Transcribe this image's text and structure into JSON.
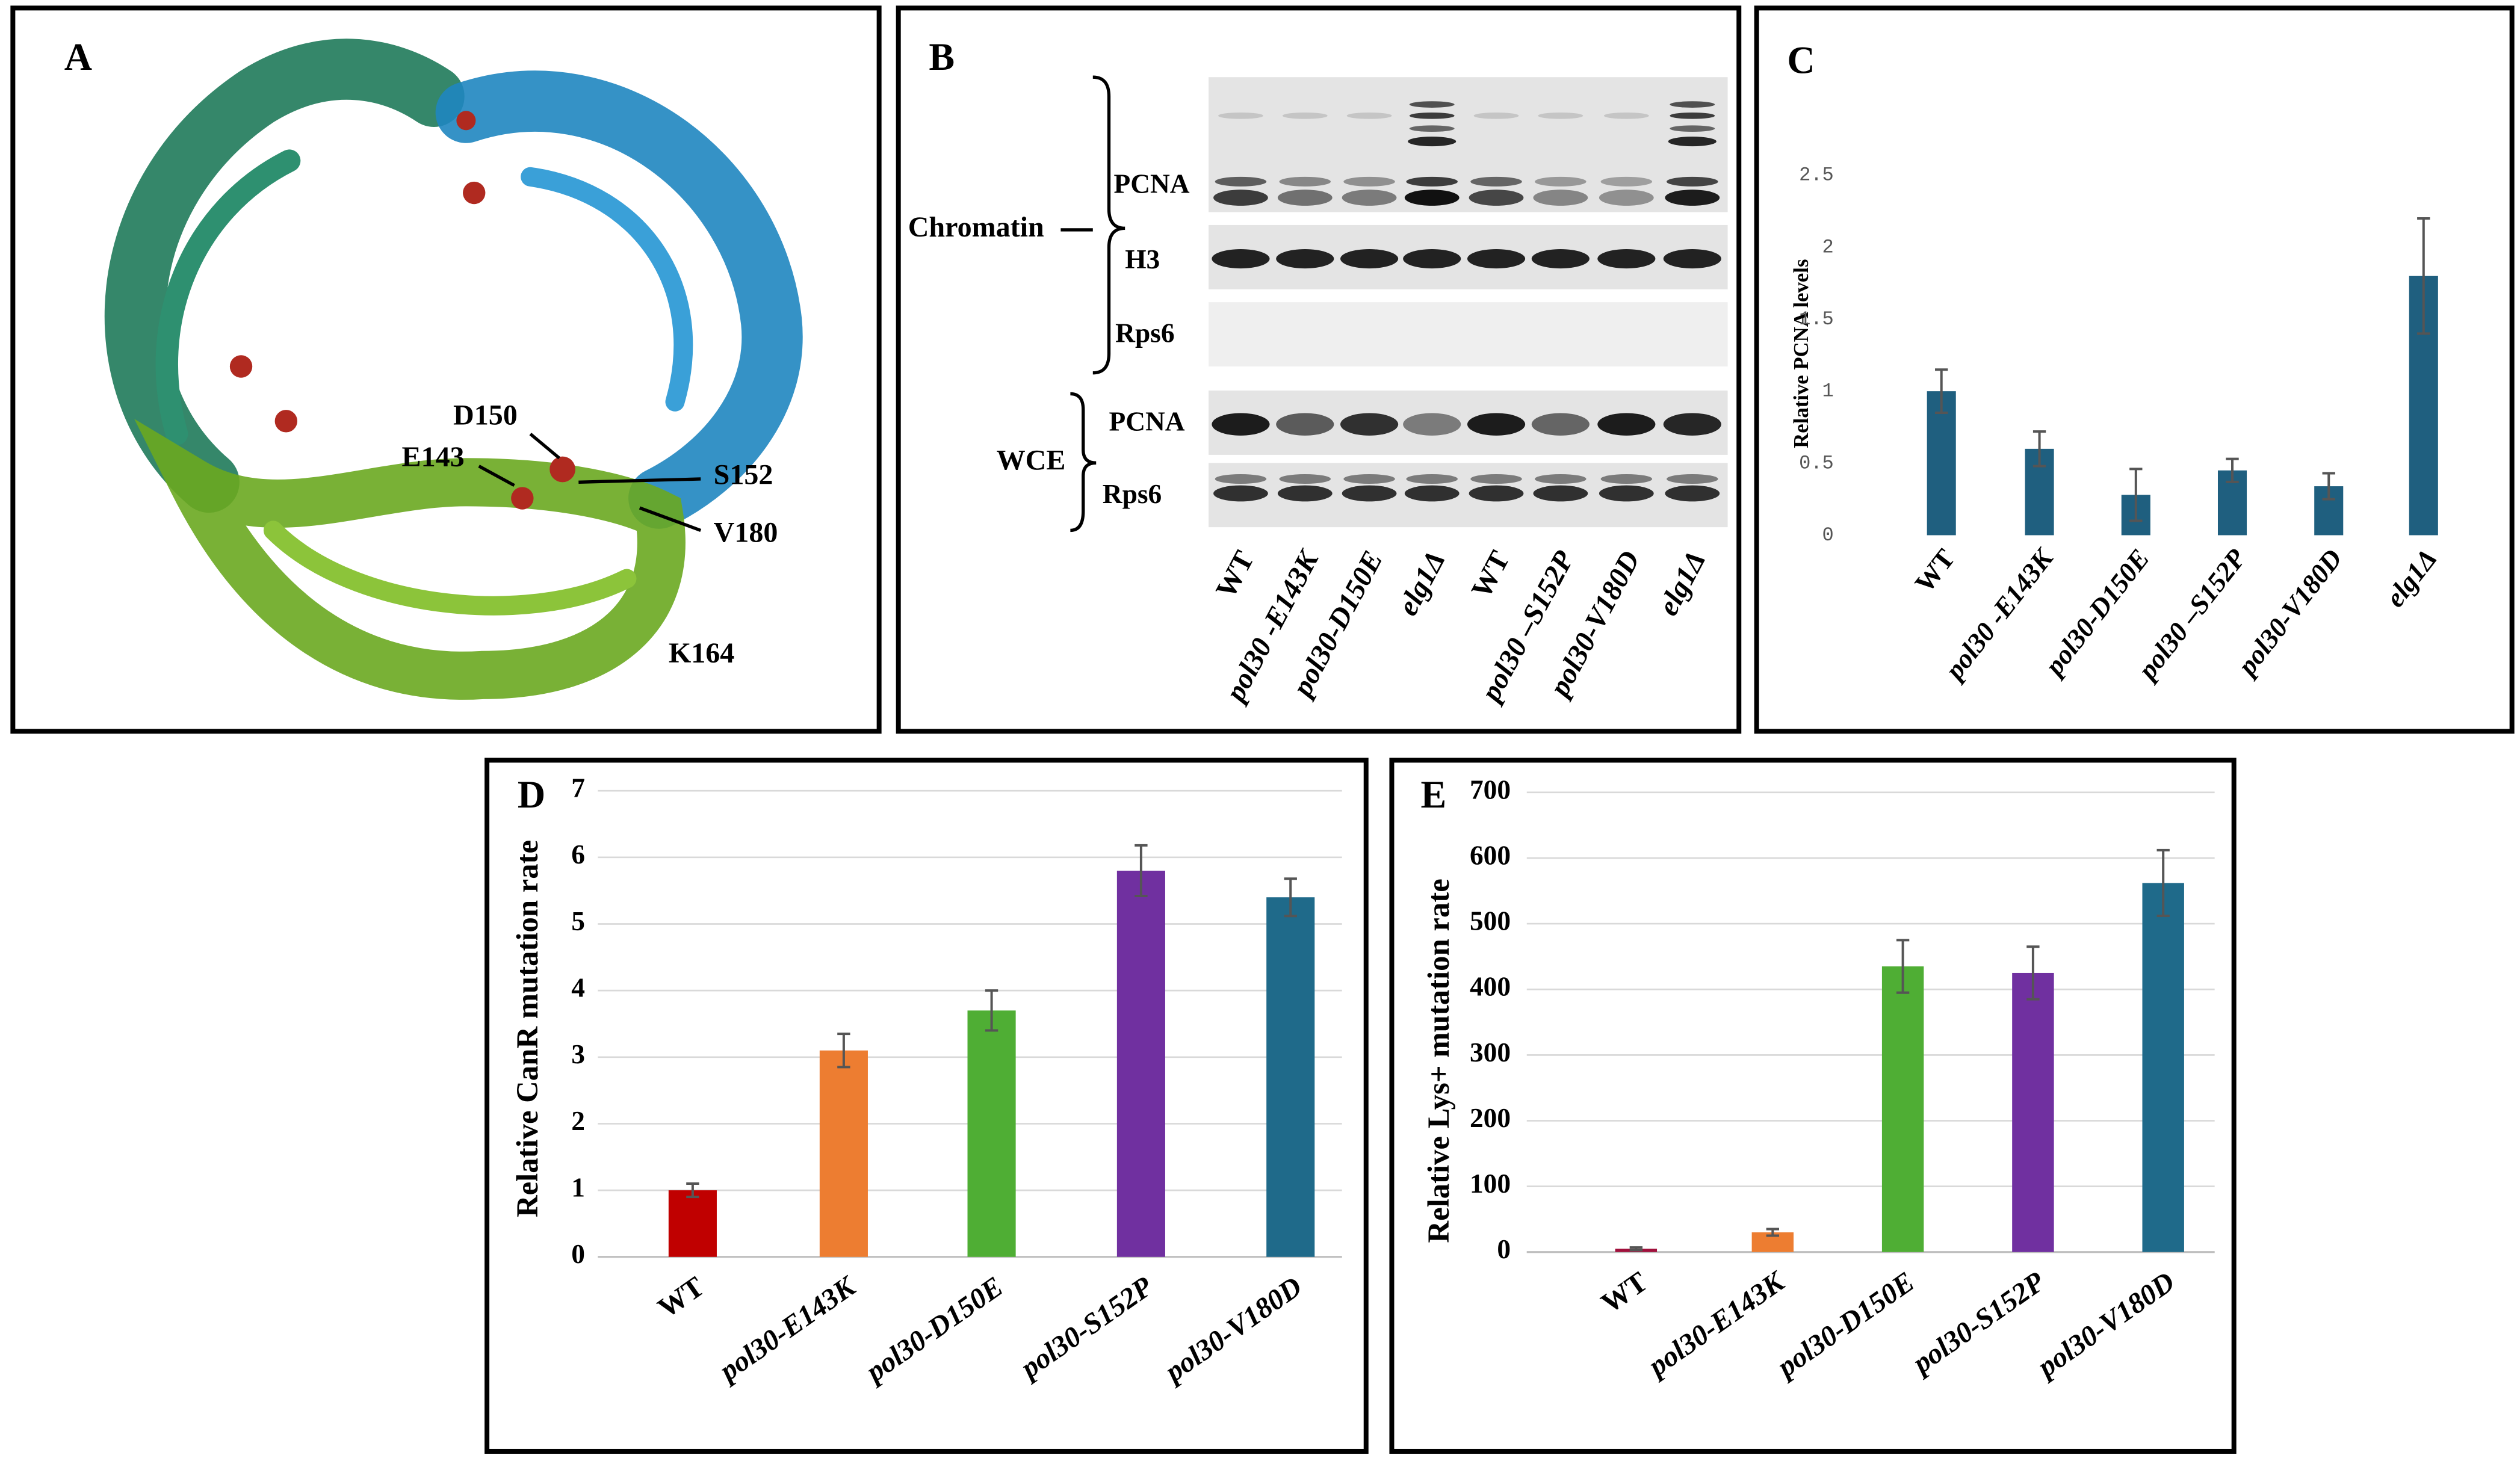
{
  "panel_a": {
    "label": "A",
    "residues": [
      "D150",
      "E143",
      "S152",
      "V180",
      "K164"
    ]
  },
  "panel_b": {
    "label": "B",
    "groups": [
      "Chromatin",
      "WCE"
    ],
    "rows": [
      "PCNA",
      "H3",
      "Rps6",
      "PCNA",
      "Rps6"
    ],
    "lanes": [
      "WT",
      "pol30 -E143K",
      "pol30-D150E",
      "elg1Δ",
      "WT",
      "pol30 –S152P",
      "pol30-V180D",
      "elg1Δ"
    ]
  },
  "chart_data": [
    {
      "panel_label": "C",
      "type": "bar",
      "y_label": "Relative PCNA levels",
      "categories": [
        "WT",
        "pol30 -E143K",
        "pol30-D150E",
        "pol30 –S152P",
        "pol30-V180D",
        "elg1Δ"
      ],
      "values": [
        1,
        0.6,
        0.28,
        0.45,
        0.34,
        1.8
      ],
      "errors": [
        0.15,
        0.12,
        0.18,
        0.08,
        0.09,
        0.4
      ],
      "color": "#1f5f7f",
      "ylim": [
        0,
        2.5
      ],
      "yticks": [
        0,
        0.5,
        1,
        1.5,
        2,
        2.5
      ],
      "grid": false
    },
    {
      "panel_label": "D",
      "type": "bar",
      "y_label": "Relative CanR mutation rate",
      "categories": [
        "WT",
        "pol30-E143K",
        "pol30-D150E",
        "pol30-S152P",
        "pol30-V180D"
      ],
      "values": [
        1,
        3.1,
        3.7,
        5.8,
        5.4
      ],
      "errors": [
        0.1,
        0.25,
        0.3,
        0.38,
        0.28
      ],
      "colors": [
        "#c00000",
        "#ed7d31",
        "#4fae34",
        "#7030a0",
        "#1f6a8a"
      ],
      "ylim": [
        0,
        7
      ],
      "yticks": [
        0,
        1,
        2,
        3,
        4,
        5,
        6,
        7
      ],
      "grid": true
    },
    {
      "panel_label": "E",
      "type": "bar",
      "y_label": "Relative Lys+ mutation rate",
      "categories": [
        "WT",
        "pol30-E143K",
        "pol30-D150E",
        "pol30-S152P",
        "pol30-V180D"
      ],
      "values": [
        5,
        30,
        435,
        425,
        562
      ],
      "errors": [
        2,
        5,
        40,
        40,
        50
      ],
      "colors": [
        "#a0103c",
        "#ed7d31",
        "#4fae34",
        "#7030a0",
        "#1f6a8a"
      ],
      "ylim": [
        0,
        700
      ],
      "yticks": [
        0,
        100,
        200,
        300,
        400,
        500,
        600,
        700
      ],
      "grid": true
    }
  ]
}
